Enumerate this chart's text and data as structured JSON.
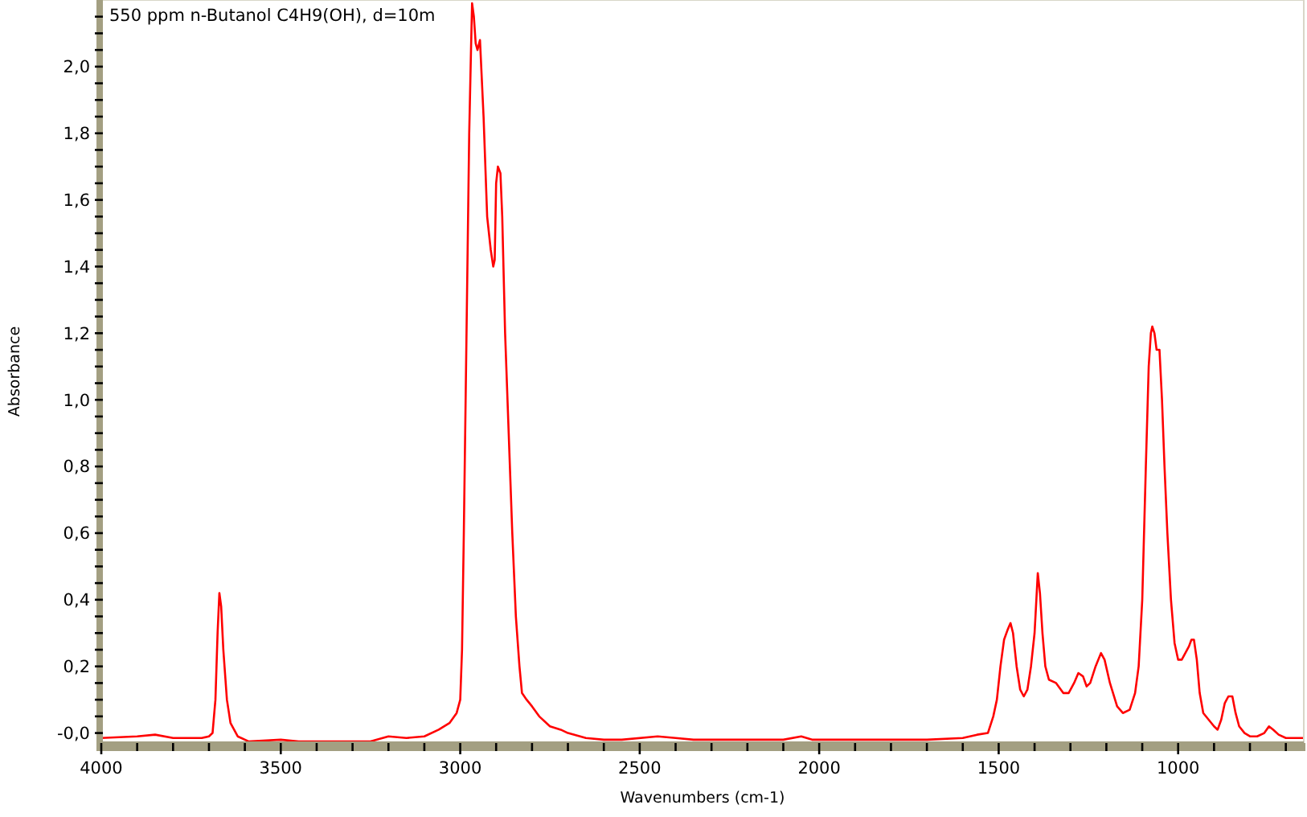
{
  "chart_data": {
    "type": "line",
    "title": "550 ppm n-Butanol C4H9(OH), d=10m",
    "xlabel": "Wavenumbers (cm-1)",
    "ylabel": "Absorbance",
    "xlim": [
      4000,
      650
    ],
    "ylim": [
      -0.03,
      2.2
    ],
    "xticks": [
      4000,
      {
        "value": 3900,
        "label": null
      },
      {
        "value": 3800,
        "label": null
      },
      {
        "value": 3700,
        "label": null
      },
      {
        "value": 3600,
        "label": null
      },
      3500,
      {
        "value": 3400,
        "label": null
      },
      {
        "value": 3300,
        "label": null
      },
      {
        "value": 3200,
        "label": null
      },
      {
        "value": 3100,
        "label": null
      },
      3000,
      {
        "value": 2900,
        "label": null
      },
      {
        "value": 2800,
        "label": null
      },
      {
        "value": 2700,
        "label": null
      },
      {
        "value": 2600,
        "label": null
      },
      2500,
      {
        "value": 2400,
        "label": null
      },
      {
        "value": 2300,
        "label": null
      },
      {
        "value": 2200,
        "label": null
      },
      {
        "value": 2100,
        "label": null
      },
      2000,
      {
        "value": 1900,
        "label": null
      },
      {
        "value": 1800,
        "label": null
      },
      {
        "value": 1700,
        "label": null
      },
      {
        "value": 1600,
        "label": null
      },
      1500,
      {
        "value": 1400,
        "label": null
      },
      {
        "value": 1300,
        "label": null
      },
      {
        "value": 1200,
        "label": null
      },
      {
        "value": 1100,
        "label": null
      },
      1000,
      {
        "value": 900,
        "label": null
      },
      {
        "value": 800,
        "label": null
      },
      {
        "value": 700,
        "label": null
      }
    ],
    "yticks": [
      {
        "value": 0,
        "label": "-0,0"
      },
      {
        "value": 0.05,
        "label": null
      },
      {
        "value": 0.1,
        "label": null
      },
      {
        "value": 0.15,
        "label": null
      },
      {
        "value": 0.2,
        "label": "0,2"
      },
      {
        "value": 0.25,
        "label": null
      },
      {
        "value": 0.3,
        "label": null
      },
      {
        "value": 0.35,
        "label": null
      },
      {
        "value": 0.4,
        "label": "0,4"
      },
      {
        "value": 0.45,
        "label": null
      },
      {
        "value": 0.5,
        "label": null
      },
      {
        "value": 0.55,
        "label": null
      },
      {
        "value": 0.6,
        "label": "0,6"
      },
      {
        "value": 0.65,
        "label": null
      },
      {
        "value": 0.7,
        "label": null
      },
      {
        "value": 0.75,
        "label": null
      },
      {
        "value": 0.8,
        "label": "0,8"
      },
      {
        "value": 0.85,
        "label": null
      },
      {
        "value": 0.9,
        "label": null
      },
      {
        "value": 0.95,
        "label": null
      },
      {
        "value": 1.0,
        "label": "1,0"
      },
      {
        "value": 1.05,
        "label": null
      },
      {
        "value": 1.1,
        "label": null
      },
      {
        "value": 1.15,
        "label": null
      },
      {
        "value": 1.2,
        "label": "1,2"
      },
      {
        "value": 1.25,
        "label": null
      },
      {
        "value": 1.3,
        "label": null
      },
      {
        "value": 1.35,
        "label": null
      },
      {
        "value": 1.4,
        "label": "1,4"
      },
      {
        "value": 1.45,
        "label": null
      },
      {
        "value": 1.5,
        "label": null
      },
      {
        "value": 1.55,
        "label": null
      },
      {
        "value": 1.6,
        "label": "1,6"
      },
      {
        "value": 1.65,
        "label": null
      },
      {
        "value": 1.7,
        "label": null
      },
      {
        "value": 1.75,
        "label": null
      },
      {
        "value": 1.8,
        "label": "1,8"
      },
      {
        "value": 1.85,
        "label": null
      },
      {
        "value": 1.9,
        "label": null
      },
      {
        "value": 1.95,
        "label": null
      },
      {
        "value": 2.0,
        "label": "2,0"
      },
      {
        "value": 2.05,
        "label": null
      },
      {
        "value": 2.1,
        "label": null
      },
      {
        "value": 2.15,
        "label": null
      }
    ],
    "line_style": "solid",
    "series": [
      {
        "color": "#ff0000",
        "x": [
          4000,
          3900,
          3850,
          3800,
          3720,
          3700,
          3690,
          3682,
          3676,
          3671,
          3666,
          3660,
          3650,
          3640,
          3620,
          3590,
          3500,
          3450,
          3250,
          3200,
          3150,
          3100,
          3060,
          3030,
          3010,
          3000,
          2995,
          2990,
          2985,
          2980,
          2975,
          2970,
          2967,
          2962,
          2957,
          2952,
          2945,
          2935,
          2925,
          2915,
          2908,
          2904,
          2900,
          2895,
          2888,
          2883,
          2875,
          2865,
          2855,
          2845,
          2835,
          2828,
          2815,
          2800,
          2780,
          2750,
          2720,
          2700,
          2650,
          2600,
          2550,
          2450,
          2400,
          2350,
          2300,
          2100,
          2050,
          2020,
          1700,
          1600,
          1560,
          1530,
          1515,
          1505,
          1495,
          1485,
          1475,
          1467,
          1460,
          1450,
          1440,
          1430,
          1420,
          1410,
          1400,
          1391,
          1385,
          1378,
          1370,
          1360,
          1340,
          1320,
          1305,
          1290,
          1278,
          1265,
          1255,
          1245,
          1230,
          1215,
          1205,
          1190,
          1170,
          1154,
          1135,
          1120,
          1110,
          1100,
          1090,
          1082,
          1076,
          1072,
          1066,
          1060,
          1052,
          1045,
          1038,
          1030,
          1020,
          1010,
          1000,
          990,
          980,
          970,
          963,
          956,
          948,
          940,
          930,
          915,
          900,
          890,
          880,
          870,
          860,
          849,
          840,
          830,
          815,
          800,
          780,
          760,
          747,
          735,
          720,
          700,
          670,
          650
        ],
        "values": [
          -0.015,
          -0.01,
          -0.005,
          -0.015,
          -0.015,
          -0.01,
          0.0,
          0.1,
          0.3,
          0.42,
          0.38,
          0.25,
          0.1,
          0.03,
          -0.01,
          -0.025,
          -0.02,
          -0.025,
          -0.025,
          -0.01,
          -0.015,
          -0.01,
          0.01,
          0.03,
          0.06,
          0.1,
          0.25,
          0.6,
          1.0,
          1.4,
          1.8,
          2.05,
          2.19,
          2.15,
          2.07,
          2.05,
          2.08,
          1.85,
          1.55,
          1.45,
          1.4,
          1.42,
          1.65,
          1.7,
          1.68,
          1.55,
          1.2,
          0.9,
          0.6,
          0.35,
          0.2,
          0.12,
          0.1,
          0.08,
          0.05,
          0.02,
          0.01,
          0.0,
          -0.015,
          -0.02,
          -0.02,
          -0.01,
          -0.015,
          -0.02,
          -0.02,
          -0.02,
          -0.01,
          -0.02,
          -0.02,
          -0.015,
          -0.005,
          0.0,
          0.05,
          0.1,
          0.2,
          0.28,
          0.31,
          0.33,
          0.3,
          0.2,
          0.13,
          0.11,
          0.13,
          0.2,
          0.3,
          0.48,
          0.42,
          0.3,
          0.2,
          0.16,
          0.15,
          0.12,
          0.12,
          0.15,
          0.18,
          0.17,
          0.14,
          0.15,
          0.2,
          0.24,
          0.22,
          0.15,
          0.08,
          0.06,
          0.07,
          0.12,
          0.2,
          0.4,
          0.8,
          1.1,
          1.2,
          1.22,
          1.2,
          1.15,
          1.15,
          1.0,
          0.8,
          0.6,
          0.4,
          0.27,
          0.22,
          0.22,
          0.24,
          0.26,
          0.28,
          0.28,
          0.22,
          0.12,
          0.06,
          0.04,
          0.02,
          0.01,
          0.04,
          0.09,
          0.11,
          0.11,
          0.06,
          0.02,
          0.0,
          -0.01,
          -0.01,
          0.0,
          0.02,
          0.01,
          -0.005,
          -0.015,
          -0.015,
          -0.015
        ]
      }
    ]
  }
}
